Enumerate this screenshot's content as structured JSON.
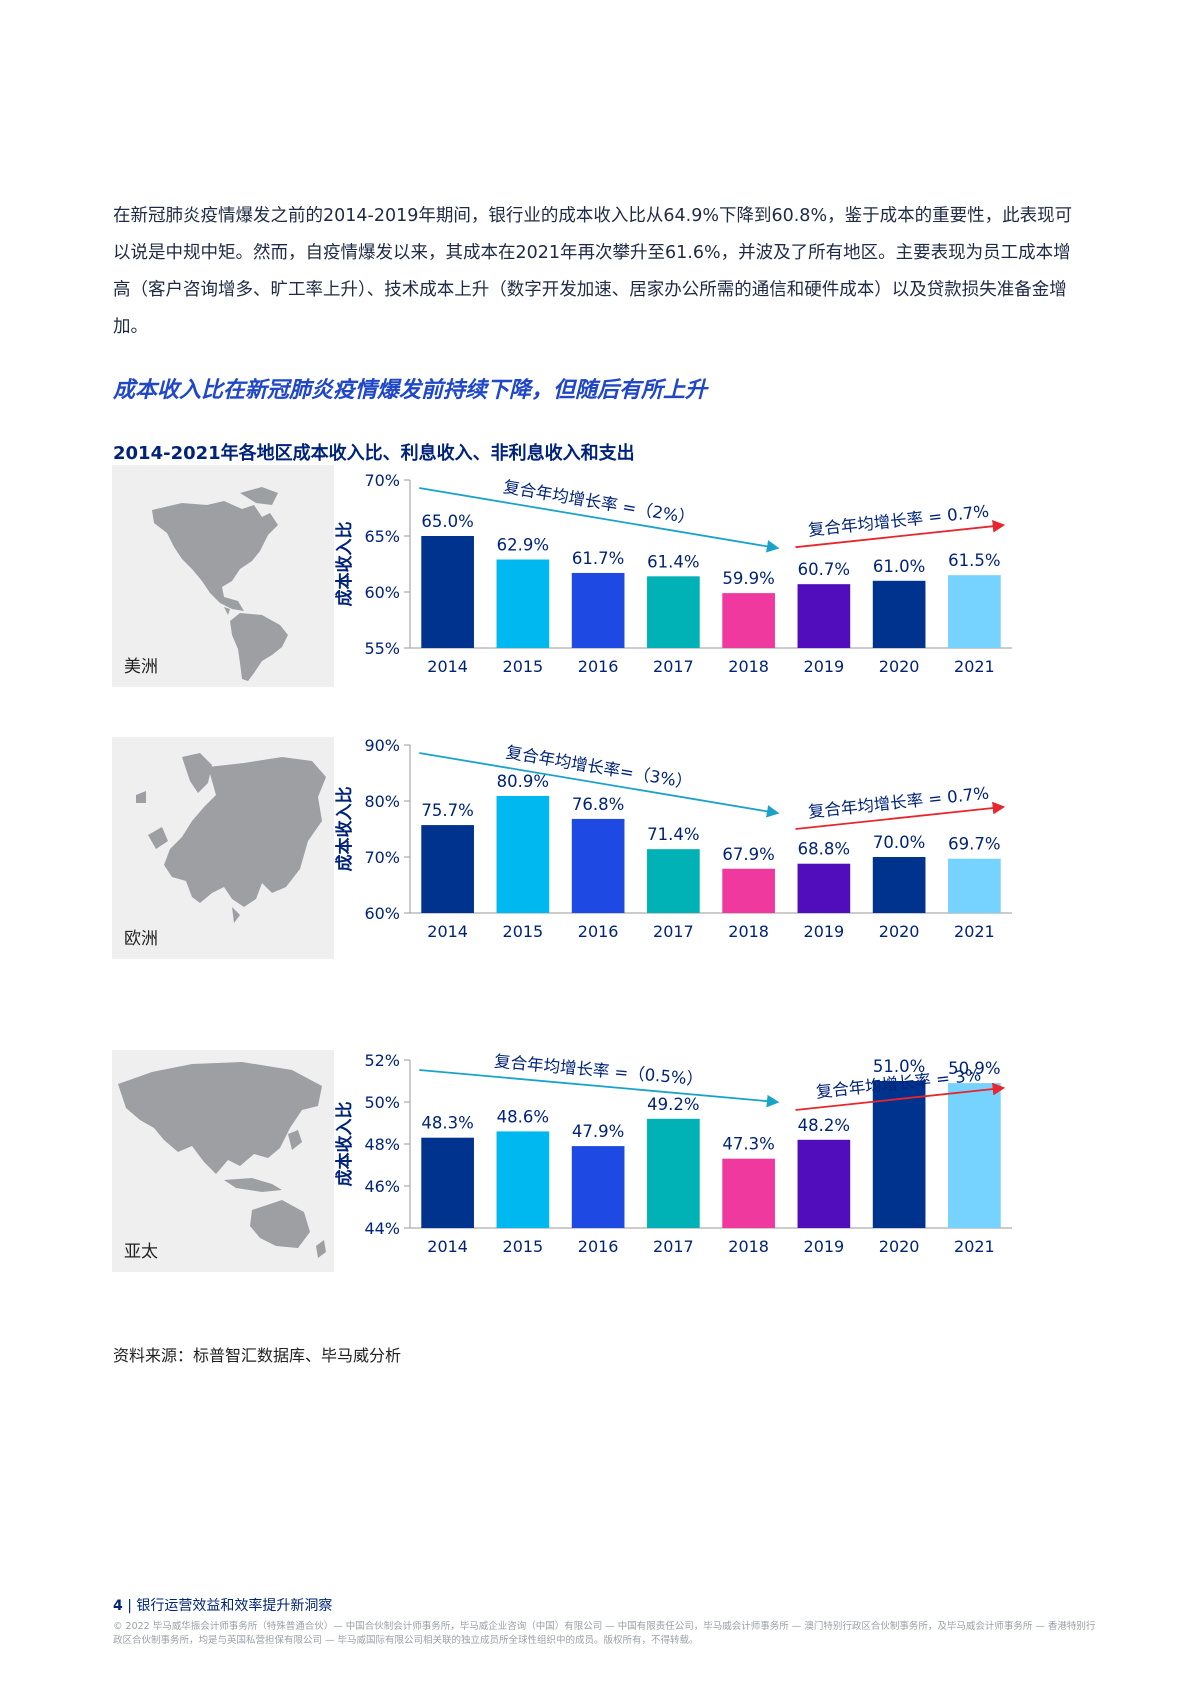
{
  "intro": "在新冠肺炎疫情爆发之前的2014-2019年期间，银行业的成本收入比从64.9%下降到60.8%，鉴于成本的重要性，此表现可以说是中规中矩。然而，自疫情爆发以来，其成本在2021年再次攀升至61.6%，并波及了所有地区。主要表现为员工成本增高（客户咨询增多、旷工率上升）、技术成本上升（数字开发加速、居家办公所需的通信和硬件成本）以及贷款损失准备金增加。",
  "section_heading": "成本收入比在新冠肺炎疫情爆发前持续下降，但随后有所上升",
  "figure_title": "2014-2021年各地区成本收入比、利息收入、非利息收入和支出",
  "colors": [
    "#00338d",
    "#00b8f0",
    "#1e49e2",
    "#00b2b5",
    "#f0399f",
    "#510dbc",
    "#00338d",
    "#76d2ff"
  ],
  "chart_data": [
    {
      "type": "bar",
      "region": "美洲",
      "map_icon": "americas-map-icon",
      "ylabel": "成本收入比",
      "categories": [
        "2014",
        "2015",
        "2016",
        "2017",
        "2018",
        "2019",
        "2020",
        "2021"
      ],
      "values": [
        65.0,
        62.9,
        61.7,
        61.4,
        59.9,
        60.7,
        61.0,
        61.5
      ],
      "labels": [
        "65.0%",
        "62.9%",
        "61.7%",
        "61.4%",
        "59.9%",
        "60.7%",
        "61.0%",
        "61.5%"
      ],
      "ylim": [
        55,
        70
      ],
      "yticks": [
        55,
        60,
        65,
        70
      ],
      "ytick_labels": [
        "55%",
        "60%",
        "65%",
        "70%"
      ],
      "grid": false,
      "annotations": [
        {
          "text": "复合年均增长率 =（2%）",
          "from_index": 0,
          "to_index": 4,
          "direction": "down",
          "color": "#1aa3c9"
        },
        {
          "text": "复合年均增长率 = 0.7%",
          "from_index": 5,
          "to_index": 7,
          "direction": "up",
          "color": "#e8262e"
        }
      ]
    },
    {
      "type": "bar",
      "region": "欧洲",
      "map_icon": "europe-map-icon",
      "ylabel": "成本收入比",
      "categories": [
        "2014",
        "2015",
        "2016",
        "2017",
        "2018",
        "2019",
        "2020",
        "2021"
      ],
      "values": [
        75.7,
        80.9,
        76.8,
        71.4,
        67.9,
        68.8,
        70.0,
        69.7
      ],
      "labels": [
        "75.7%",
        "80.9%",
        "76.8%",
        "71.4%",
        "67.9%",
        "68.8%",
        "70.0%",
        "69.7%"
      ],
      "ylim": [
        60,
        90
      ],
      "yticks": [
        60,
        70,
        80,
        90
      ],
      "ytick_labels": [
        "60%",
        "70%",
        "80%",
        "90%"
      ],
      "grid": false,
      "annotations": [
        {
          "text": "复合年均增长率=（3%）",
          "from_index": 0,
          "to_index": 4,
          "direction": "down",
          "color": "#1aa3c9"
        },
        {
          "text": "复合年均增长率 = 0.7%",
          "from_index": 5,
          "to_index": 7,
          "direction": "up",
          "color": "#e8262e"
        }
      ]
    },
    {
      "type": "bar",
      "region": "亚太",
      "map_icon": "asia-pacific-map-icon",
      "ylabel": "成本收入比",
      "categories": [
        "2014",
        "2015",
        "2016",
        "2017",
        "2018",
        "2019",
        "2020",
        "2021"
      ],
      "values": [
        48.3,
        48.6,
        47.9,
        49.2,
        47.3,
        48.2,
        51.0,
        50.9
      ],
      "labels": [
        "48.3%",
        "48.6%",
        "47.9%",
        "49.2%",
        "47.3%",
        "48.2%",
        "51.0%",
        "50.9%"
      ],
      "ylim": [
        44,
        52
      ],
      "yticks": [
        44,
        46,
        48,
        50,
        52
      ],
      "ytick_labels": [
        "44%",
        "46%",
        "48%",
        "50%",
        "52%"
      ],
      "grid": false,
      "annotations": [
        {
          "text": "复合年均增长率 =（0.5%）",
          "from_index": 0,
          "to_index": 4,
          "direction": "flat",
          "color": "#1aa3c9"
        },
        {
          "text": "复合年均增长率 = 3%",
          "from_index": 5,
          "to_index": 7,
          "direction": "up",
          "color": "#e8262e"
        }
      ]
    }
  ],
  "source": "资料来源：标普智汇数据库、毕马威分析",
  "footer": {
    "page_number": "4",
    "title": "银行运营效益和效率提升新洞察"
  },
  "legal": "© 2022 毕马威华振会计师事务所（特殊普通合伙）— 中国合伙制会计师事务所，毕马威企业咨询（中国）有限公司 — 中国有限责任公司，毕马威会计师事务所 — 澳门特别行政区合伙制事务所，及毕马威会计师事务所 — 香港特别行政区合伙制事务所，均是与英国私营担保有限公司 — 毕马威国际有限公司相关联的独立成员所全球性组织中的成员。版权所有，不得转载。"
}
